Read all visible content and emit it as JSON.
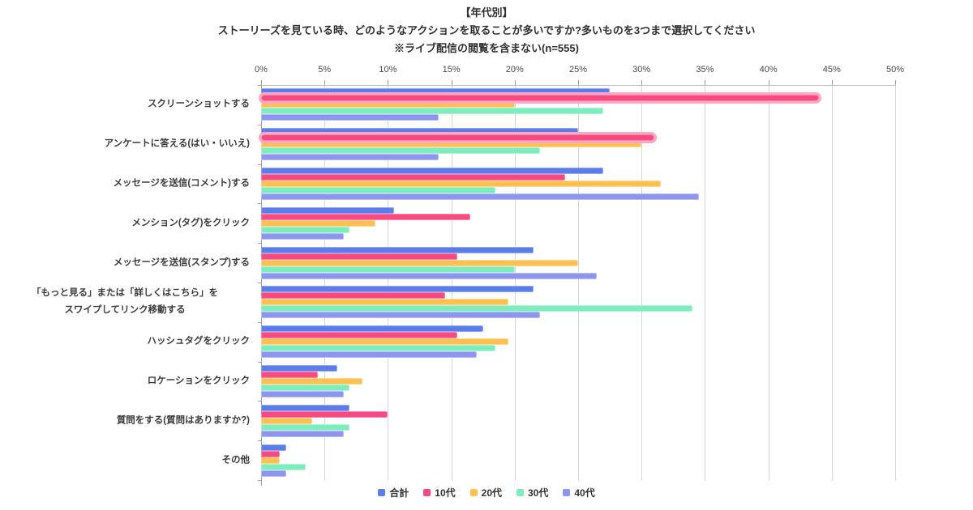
{
  "title": {
    "tag": "【年代別】",
    "question": "ストーリーズを見ている時、どのようなアクションを取ることが多いですか?多いものを3つまで選択してください",
    "note": "※ライブ配信の閲覧を含まない(n=555)"
  },
  "chart_data": {
    "type": "bar",
    "orientation": "horizontal",
    "xlim": [
      0,
      50
    ],
    "tick_labels": [
      "0%",
      "5%",
      "10%",
      "15%",
      "20%",
      "25%",
      "30%",
      "35%",
      "40%",
      "45%",
      "50%"
    ],
    "grid": true,
    "legend_position": "bottom",
    "categories": [
      "スクリーンショットする",
      "アンケートに答える(はい・いいえ)",
      "メッセージを送信(コメント)する",
      "メンション(タグ)をクリック",
      "メッセージを送信(スタンプ)する",
      "「もっと見る」または「詳しくはこちら」を\nスワイプしてリンク移動する",
      "ハッシュタグをクリック",
      "ロケーションをクリック",
      "質問をする(質問はありますか?)",
      "その他"
    ],
    "series": [
      {
        "name": "合計",
        "color": "#5b7ceb",
        "border_color": "#93a9f3",
        "values": [
          27.5,
          25,
          27,
          10.5,
          21.5,
          21.5,
          17.5,
          6,
          7,
          2
        ]
      },
      {
        "name": "10代",
        "color": "#f74a80",
        "border_color": "#fa86ac",
        "halo_color": "#f9a9c7",
        "highlighted_categories": [
          0,
          1
        ],
        "values": [
          44,
          31,
          24,
          16.5,
          15.5,
          14.5,
          15.5,
          4.5,
          10,
          1.5
        ]
      },
      {
        "name": "20代",
        "color": "#ffc050",
        "border_color": "#ffd794",
        "values": [
          20,
          30,
          31.5,
          9,
          25,
          19.5,
          19.5,
          8,
          4,
          1.5
        ]
      },
      {
        "name": "30代",
        "color": "#7eedbc",
        "border_color": "#b0f5d9",
        "values": [
          27,
          22,
          18.5,
          7,
          20,
          34,
          18.5,
          7,
          7,
          3.5
        ]
      },
      {
        "name": "40代",
        "color": "#8e95f0",
        "border_color": "#b8bcf7",
        "values": [
          14,
          14,
          34.5,
          6.5,
          26.5,
          22,
          17,
          6.5,
          6.5,
          2
        ]
      }
    ]
  }
}
